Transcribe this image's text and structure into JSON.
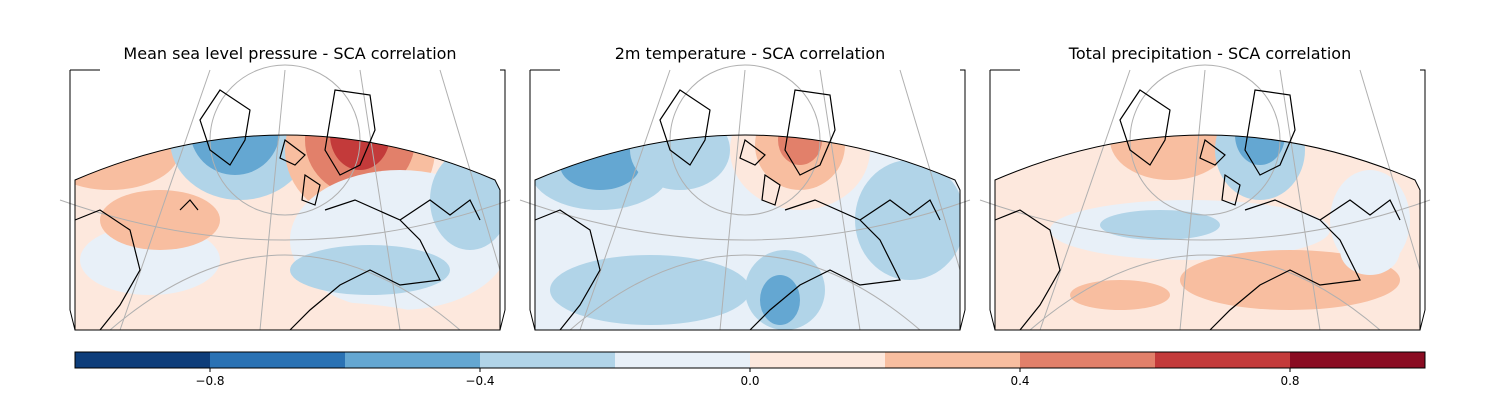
{
  "panels": [
    {
      "title": "Mean sea level pressure - SCA correlation",
      "field": "msl"
    },
    {
      "title": "2m temperature - SCA correlation",
      "field": "t2m"
    },
    {
      "title": "Total precipitation - SCA correlation",
      "field": "tp"
    }
  ],
  "colorbar": {
    "boundaries": [
      -1.0,
      -0.8,
      -0.6,
      -0.4,
      -0.2,
      0.0,
      0.2,
      0.4,
      0.6,
      0.8,
      1.0
    ],
    "colors": [
      "#053061",
      "#2166ac",
      "#4393c3",
      "#92c5de",
      "#d1e5f0",
      "#f7f7f7",
      "#fddbc7",
      "#f4a582",
      "#d6604d",
      "#b2182b",
      "#67001f"
    ],
    "bin_colors": [
      "#0d3d7a",
      "#2a72b4",
      "#64a7d2",
      "#b1d4e8",
      "#e8f0f8",
      "#fde8dd",
      "#f8bea0",
      "#e2806a",
      "#c33a3a",
      "#8a0c22"
    ],
    "tick_values": [
      -0.8,
      -0.4,
      0.0,
      0.4,
      0.8
    ],
    "tick_labels": [
      "−0.8",
      "−0.4",
      "0.0",
      "0.4",
      "0.8"
    ]
  },
  "map_style": {
    "coastline_color": "#000000",
    "gridline_color": "#b0b0b0",
    "projection": "Lambert conformal, North Atlantic–Europe sector"
  }
}
